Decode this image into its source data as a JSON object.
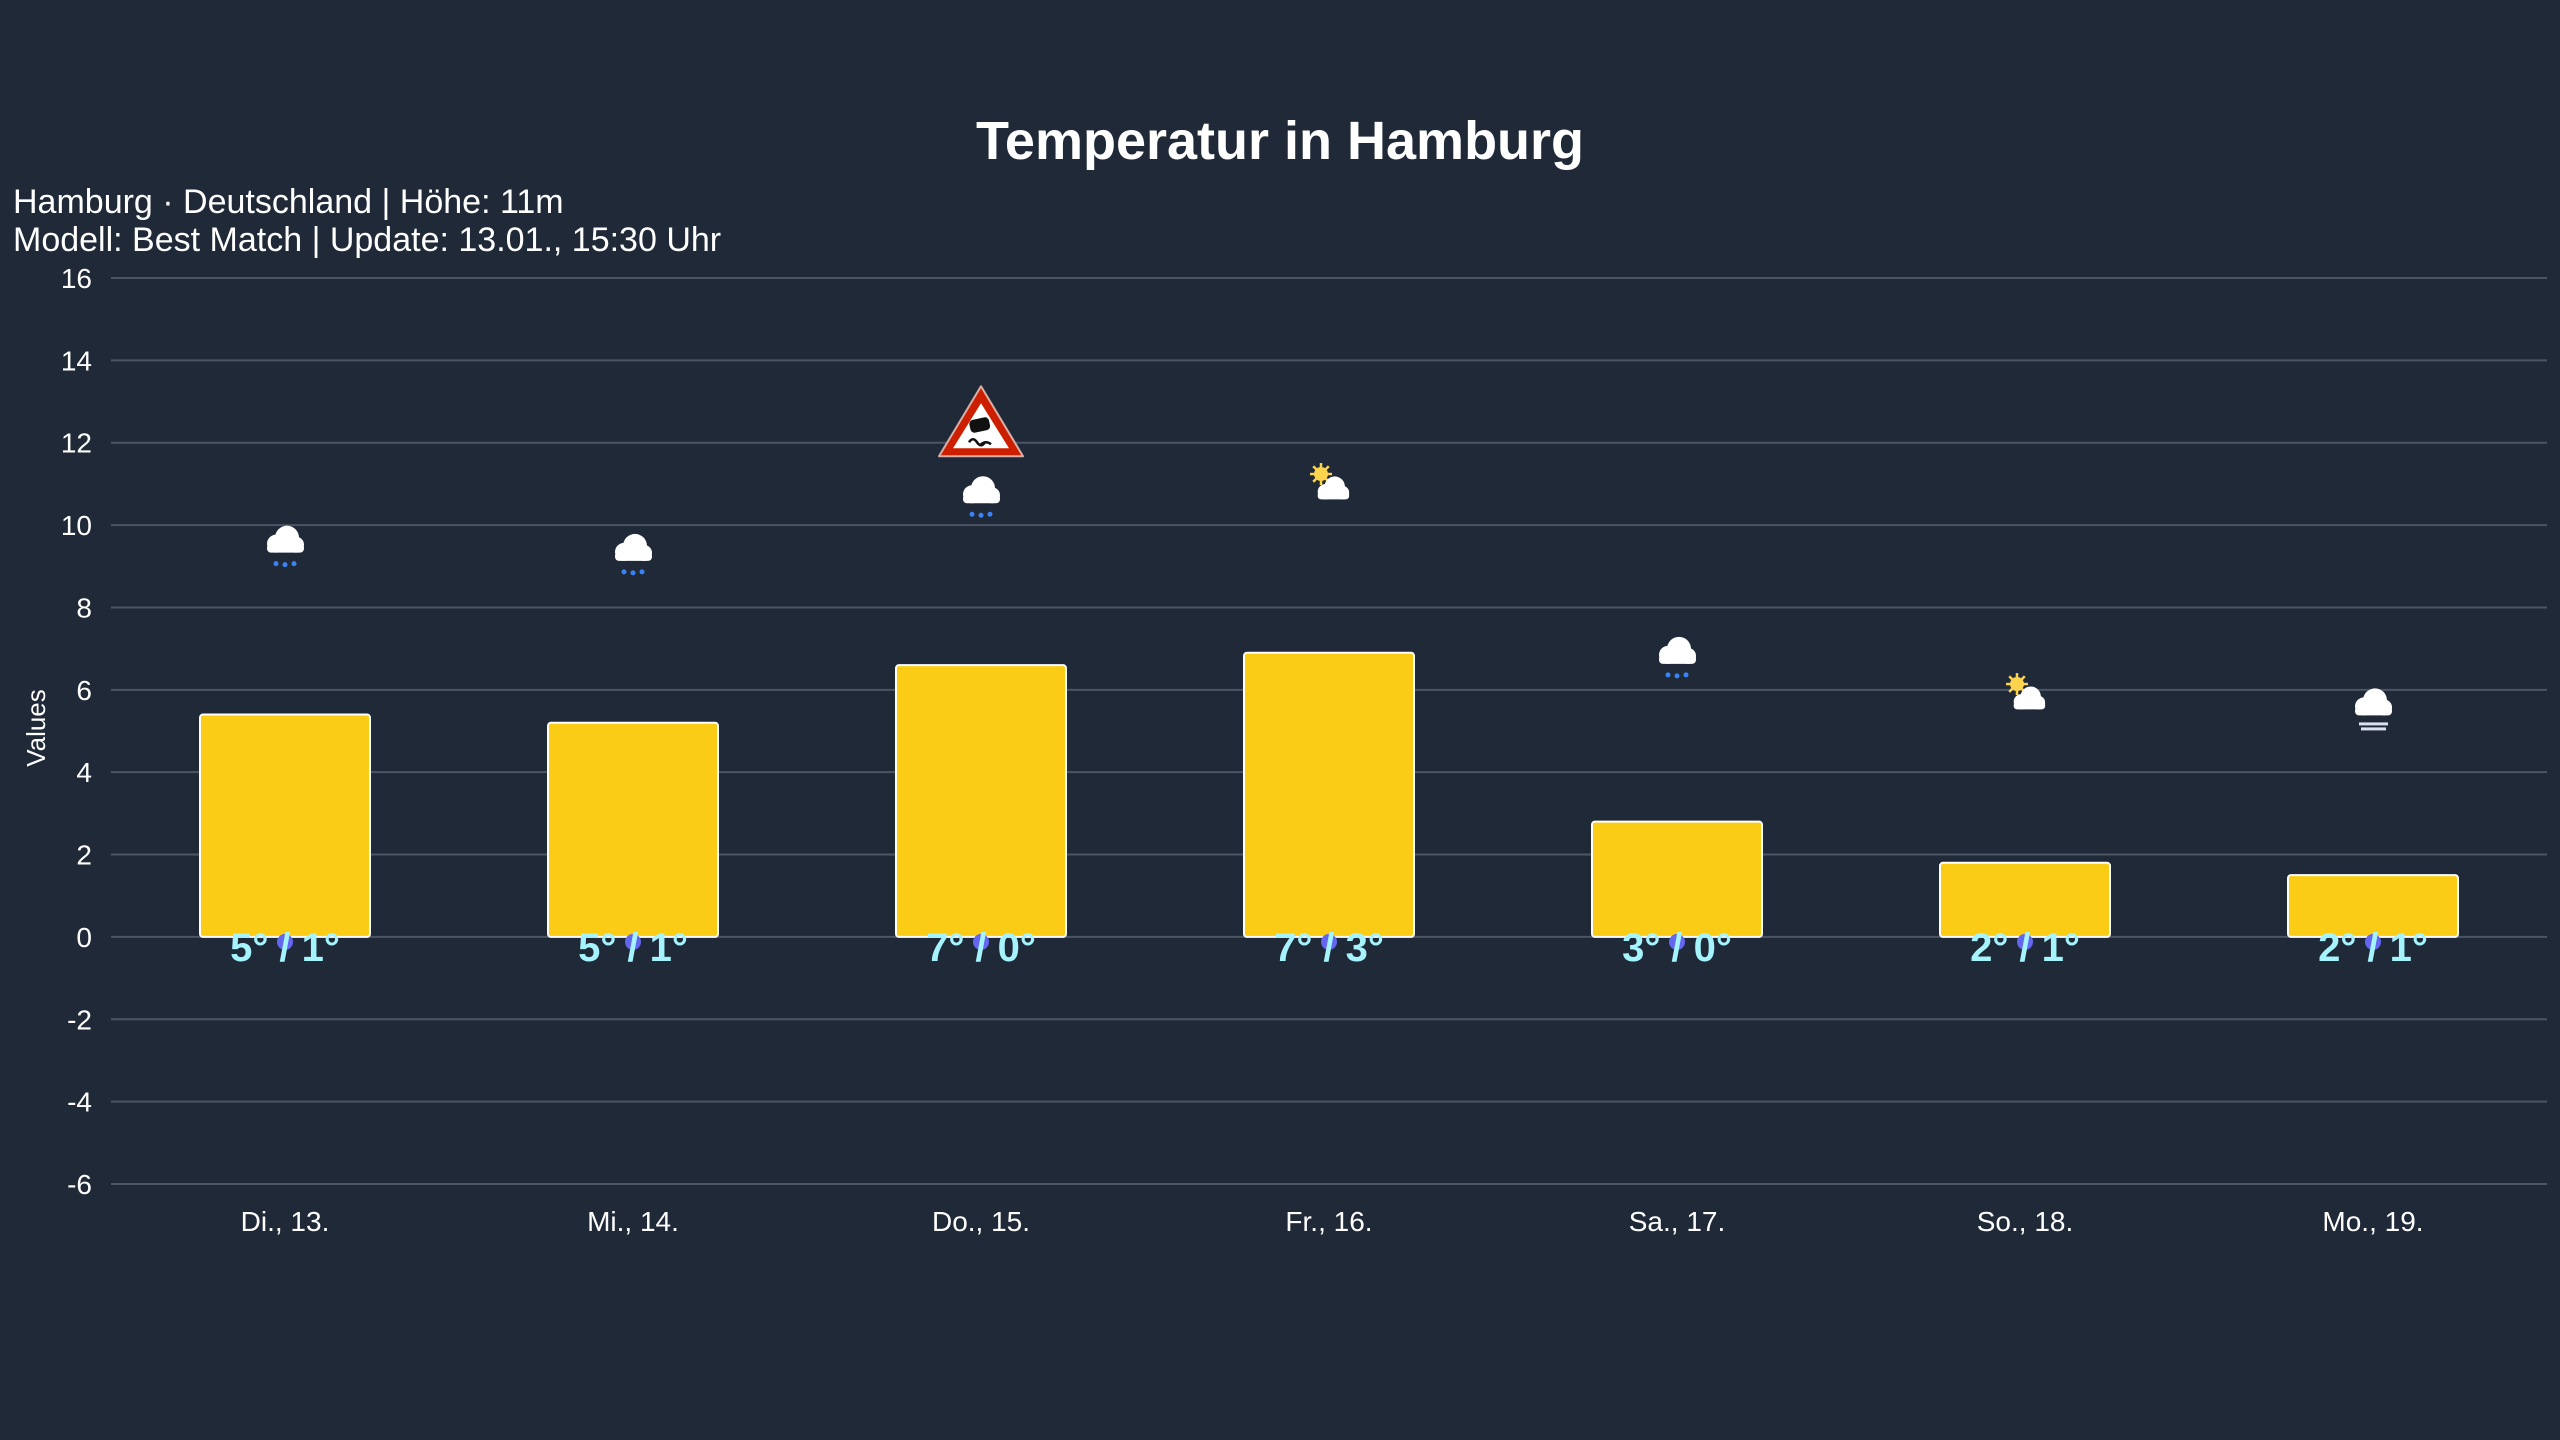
{
  "chart_data": {
    "type": "bar",
    "title": "Temperatur in Hamburg",
    "subtitle": [
      "Hamburg · Deutschland | Höhe: 11m",
      "Modell: Best Match | Update: 13.01., 15:30 Uhr"
    ],
    "ylabel": "Values",
    "xlabel": "",
    "ylim": [
      -6,
      16
    ],
    "yticks": [
      -6,
      -4,
      -2,
      0,
      2,
      4,
      6,
      8,
      10,
      12,
      14,
      16
    ],
    "grid": true,
    "categories": [
      "Di., 13.",
      "Mi., 14.",
      "Do., 15.",
      "Fr., 16.",
      "Sa., 17.",
      "So., 18.",
      "Mo., 19."
    ],
    "values": [
      5.4,
      5.2,
      6.6,
      6.9,
      2.8,
      1.8,
      1.5
    ],
    "data_labels": [
      "5° / 1°",
      "5° / 1°",
      "7° / 0°",
      "7° / 3°",
      "3° / 0°",
      "2° / 1°",
      "2° / 1°"
    ],
    "weather_icons": [
      {
        "icon": "snow-cloud-icon",
        "y": 9.5
      },
      {
        "icon": "snow-cloud-icon",
        "y": 9.3
      },
      {
        "icon": "snow-cloud-icon",
        "y": 10.7,
        "warning": "slippery-road-warning-icon",
        "warning_y": 12.4
      },
      {
        "icon": "partly-cloudy-icon",
        "y": 10.9
      },
      {
        "icon": "snow-cloud-icon",
        "y": 6.8
      },
      {
        "icon": "partly-cloudy-icon",
        "y": 5.8
      },
      {
        "icon": "fog-icon",
        "y": 5.5
      }
    ],
    "colors": {
      "bar": "#facc15",
      "bar_border": "#ffffff",
      "label": "#a5f3fc",
      "background": "#1f2937",
      "grid": "#4b5563",
      "min_marker": "#6366f1"
    }
  }
}
